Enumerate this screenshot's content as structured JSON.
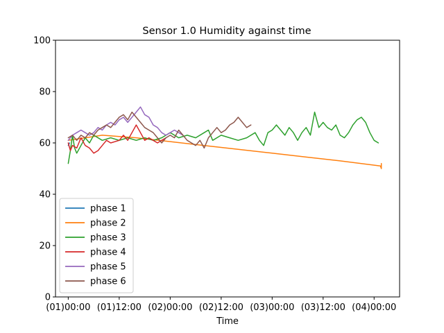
{
  "chart_data": {
    "type": "line",
    "title": "Sensor 1.0 Humidity against  time",
    "xlabel": "Time",
    "ylabel": "",
    "ylim": [
      0,
      100
    ],
    "xlim_hours": [
      -3,
      78
    ],
    "yticks": [
      0,
      20,
      40,
      60,
      80,
      100
    ],
    "xticks": [
      {
        "label": "(01)00:00",
        "hours": 0
      },
      {
        "label": "(01)12:00",
        "hours": 12
      },
      {
        "label": "(02)00:00",
        "hours": 24
      },
      {
        "label": "(02)12:00",
        "hours": 36
      },
      {
        "label": "(03)00:00",
        "hours": 48
      },
      {
        "label": "(03)12:00",
        "hours": 60
      },
      {
        "label": "(04)00:00",
        "hours": 72
      }
    ],
    "grid": false,
    "legend_position": "lower-left",
    "series": [
      {
        "name": "phase 1",
        "color": "#1f77b4",
        "points": [
          [
            0,
            59
          ],
          [
            0.3,
            60
          ]
        ]
      },
      {
        "name": "phase 2",
        "color": "#ff7f0e",
        "points": [
          [
            0,
            61
          ],
          [
            8,
            63
          ],
          [
            16,
            62
          ],
          [
            24,
            60.5
          ],
          [
            32,
            59
          ],
          [
            40,
            57.5
          ],
          [
            48,
            56
          ],
          [
            56,
            54.5
          ],
          [
            64,
            53
          ],
          [
            73.5,
            51
          ],
          [
            73.7,
            50
          ],
          [
            73.7,
            52
          ]
        ]
      },
      {
        "name": "phase 3",
        "color": "#2ca02c",
        "points": [
          [
            0,
            52
          ],
          [
            0.5,
            57
          ],
          [
            1,
            63
          ],
          [
            1.5,
            58
          ],
          [
            2,
            56
          ],
          [
            3,
            59
          ],
          [
            4,
            62
          ],
          [
            5,
            60
          ],
          [
            6,
            63
          ],
          [
            8,
            61
          ],
          [
            10,
            62
          ],
          [
            12,
            61
          ],
          [
            14,
            62
          ],
          [
            16,
            61
          ],
          [
            18,
            62
          ],
          [
            20,
            61
          ],
          [
            22,
            62
          ],
          [
            24,
            64
          ],
          [
            26,
            62
          ],
          [
            28,
            63
          ],
          [
            30,
            62
          ],
          [
            32,
            64
          ],
          [
            33,
            65
          ],
          [
            34,
            61
          ],
          [
            36,
            63
          ],
          [
            38,
            62
          ],
          [
            40,
            61
          ],
          [
            42,
            62
          ],
          [
            44,
            64
          ],
          [
            45,
            61
          ],
          [
            46,
            59
          ],
          [
            47,
            64
          ],
          [
            48,
            65
          ],
          [
            49,
            67
          ],
          [
            50,
            65
          ],
          [
            51,
            63
          ],
          [
            52,
            66
          ],
          [
            53,
            64
          ],
          [
            54,
            61
          ],
          [
            55,
            64
          ],
          [
            56,
            66
          ],
          [
            57,
            63
          ],
          [
            58,
            72
          ],
          [
            59,
            66
          ],
          [
            60,
            68
          ],
          [
            61,
            66
          ],
          [
            62,
            65
          ],
          [
            63,
            67
          ],
          [
            64,
            63
          ],
          [
            65,
            62
          ],
          [
            66,
            64
          ],
          [
            67,
            67
          ],
          [
            68,
            69
          ],
          [
            69,
            70
          ],
          [
            70,
            68
          ],
          [
            71,
            64
          ],
          [
            72,
            61
          ],
          [
            73,
            60
          ]
        ]
      },
      {
        "name": "phase 4",
        "color": "#d62728",
        "points": [
          [
            0,
            60
          ],
          [
            0.5,
            57
          ],
          [
            1,
            59
          ],
          [
            2,
            58
          ],
          [
            3,
            62
          ],
          [
            4,
            59
          ],
          [
            5,
            58
          ],
          [
            6,
            56
          ],
          [
            7,
            57
          ],
          [
            8,
            59
          ],
          [
            9,
            61
          ],
          [
            10,
            60
          ],
          [
            12,
            61
          ],
          [
            13,
            63
          ],
          [
            14,
            61
          ],
          [
            15,
            64
          ],
          [
            16,
            67
          ],
          [
            17,
            64
          ],
          [
            18,
            61
          ],
          [
            19,
            62
          ],
          [
            20,
            61
          ],
          [
            21,
            60
          ],
          [
            22,
            61
          ],
          [
            23,
            62
          ]
        ]
      },
      {
        "name": "phase 5",
        "color": "#9467bd",
        "points": [
          [
            0,
            61
          ],
          [
            1,
            63
          ],
          [
            2,
            64
          ],
          [
            3,
            65
          ],
          [
            4,
            64
          ],
          [
            5,
            63
          ],
          [
            6,
            64
          ],
          [
            7,
            66
          ],
          [
            8,
            65
          ],
          [
            9,
            67
          ],
          [
            10,
            68
          ],
          [
            11,
            67
          ],
          [
            12,
            69
          ],
          [
            13,
            70
          ],
          [
            14,
            68
          ],
          [
            15,
            70
          ],
          [
            16,
            72
          ],
          [
            17,
            74
          ],
          [
            18,
            71
          ],
          [
            19,
            70
          ],
          [
            20,
            67
          ],
          [
            21,
            66
          ],
          [
            22,
            64
          ],
          [
            23,
            63
          ],
          [
            24,
            64
          ],
          [
            25,
            65
          ],
          [
            26,
            64
          ],
          [
            27,
            63
          ]
        ]
      },
      {
        "name": "phase 6",
        "color": "#8c564b",
        "points": [
          [
            0,
            62
          ],
          [
            1,
            63
          ],
          [
            2,
            61
          ],
          [
            3,
            63
          ],
          [
            4,
            62
          ],
          [
            5,
            64
          ],
          [
            6,
            63
          ],
          [
            7,
            65
          ],
          [
            8,
            66
          ],
          [
            9,
            67
          ],
          [
            10,
            66
          ],
          [
            11,
            68
          ],
          [
            12,
            70
          ],
          [
            13,
            71
          ],
          [
            14,
            69
          ],
          [
            15,
            72
          ],
          [
            16,
            70
          ],
          [
            17,
            68
          ],
          [
            18,
            66
          ],
          [
            19,
            65
          ],
          [
            20,
            64
          ],
          [
            21,
            62
          ],
          [
            22,
            60
          ],
          [
            23,
            62
          ],
          [
            24,
            63
          ],
          [
            25,
            62
          ],
          [
            26,
            65
          ],
          [
            27,
            63
          ],
          [
            28,
            61
          ],
          [
            29,
            60
          ],
          [
            30,
            59
          ],
          [
            31,
            61
          ],
          [
            32,
            58
          ],
          [
            33,
            62
          ],
          [
            34,
            64
          ],
          [
            35,
            66
          ],
          [
            36,
            64
          ],
          [
            37,
            65
          ],
          [
            38,
            67
          ],
          [
            39,
            68
          ],
          [
            40,
            70
          ],
          [
            41,
            68
          ],
          [
            42,
            66
          ],
          [
            43,
            67
          ]
        ]
      }
    ]
  }
}
